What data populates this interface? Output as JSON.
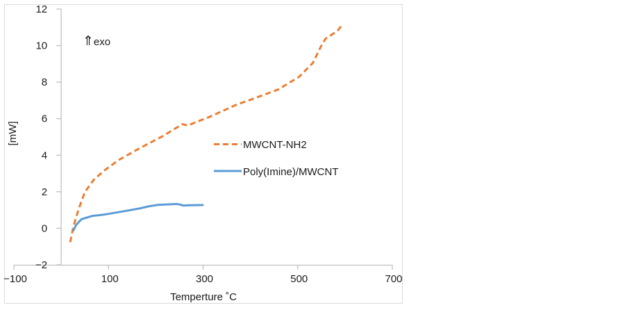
{
  "chart_data": {
    "type": "line",
    "title": "",
    "xlabel": "Temperture ˚C",
    "ylabel": "[mW]",
    "annotation": {
      "arrow": "⇑",
      "text": "exo"
    },
    "xlim": [
      -100,
      700
    ],
    "ylim": [
      -2,
      12
    ],
    "xticks": [
      -100,
      100,
      300,
      500,
      700
    ],
    "yticks": [
      -2,
      0,
      2,
      4,
      6,
      8,
      10,
      12
    ],
    "xtick_labels": [
      "−100",
      "100",
      "300",
      "500",
      "700"
    ],
    "ytick_labels": [
      "−2",
      "0",
      "2",
      "4",
      "6",
      "8",
      "10",
      "12"
    ],
    "grid": false,
    "legend_position": "right-middle",
    "series": [
      {
        "name": "MWCNT-NH2",
        "color": "#ED7D31",
        "style": "dashed",
        "x": [
          19,
          26,
          37,
          50,
          69,
          91,
          121,
          165,
          216,
          256,
          268,
          282,
          312,
          371,
          400,
          459,
          488,
          503,
          532,
          550,
          559,
          584,
          596
        ],
        "y": [
          -0.76,
          0.11,
          1.06,
          1.98,
          2.66,
          3.16,
          3.73,
          4.37,
          5.06,
          5.7,
          5.62,
          5.78,
          6.08,
          6.77,
          7.03,
          7.6,
          8.06,
          8.29,
          9.05,
          10.0,
          10.38,
          10.8,
          11.2
        ]
      },
      {
        "name": "Poly(Imine)/MWCNT",
        "color": "#5B9BD5",
        "style": "solid",
        "x": [
          25,
          32,
          43,
          66,
          91,
          125,
          165,
          185,
          204,
          243,
          252,
          258,
          270,
          301
        ],
        "y": [
          -0.15,
          0.2,
          0.5,
          0.68,
          0.75,
          0.9,
          1.08,
          1.2,
          1.28,
          1.33,
          1.3,
          1.24,
          1.26,
          1.27
        ]
      }
    ]
  }
}
